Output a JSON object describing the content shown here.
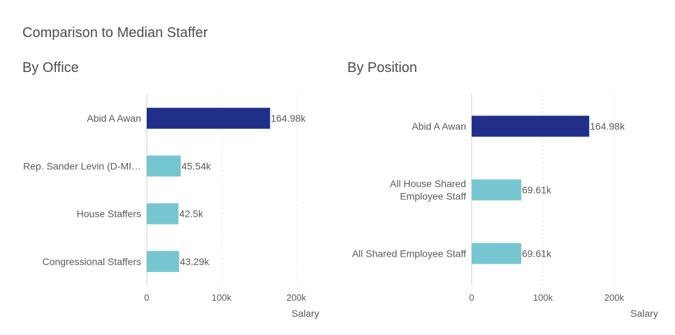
{
  "page": {
    "title": "Comparison to Median Staffer"
  },
  "colors": {
    "highlight": "#1f2f8a",
    "comparison": "#76c6d2",
    "axis": "#cfcfcf",
    "grid": "#e6e6e6",
    "label": "#5a5a5a"
  },
  "chart_data": [
    {
      "type": "bar",
      "orientation": "horizontal",
      "title": "By Office",
      "categories": [
        "Abid A Awan",
        "Rep. Sander Levin (D-MI…",
        "House Staffers",
        "Congressional Staffers"
      ],
      "values": [
        164980,
        45540,
        42500,
        43290
      ],
      "value_labels": [
        "164.98k",
        "45.54k",
        "42.5k",
        "43.29k"
      ],
      "highlight_index": 0,
      "xlabel": "Salary",
      "xlim": [
        0,
        215000
      ],
      "xticks": [
        0,
        100000,
        200000
      ],
      "xtick_labels": [
        "0",
        "100k",
        "200k"
      ],
      "grid": true
    },
    {
      "type": "bar",
      "orientation": "horizontal",
      "title": "By Position",
      "categories": [
        "Abid A Awan",
        "All House Shared\nEmployee Staff",
        "All Shared Employee Staff"
      ],
      "values": [
        164980,
        69610,
        69610
      ],
      "value_labels": [
        "164.98k",
        "69.61k",
        "69.61k"
      ],
      "highlight_index": 0,
      "xlabel": "Salary",
      "xlim": [
        0,
        215000
      ],
      "xticks": [
        0,
        100000,
        200000
      ],
      "xtick_labels": [
        "0",
        "100k",
        "200k"
      ],
      "grid": true
    }
  ]
}
